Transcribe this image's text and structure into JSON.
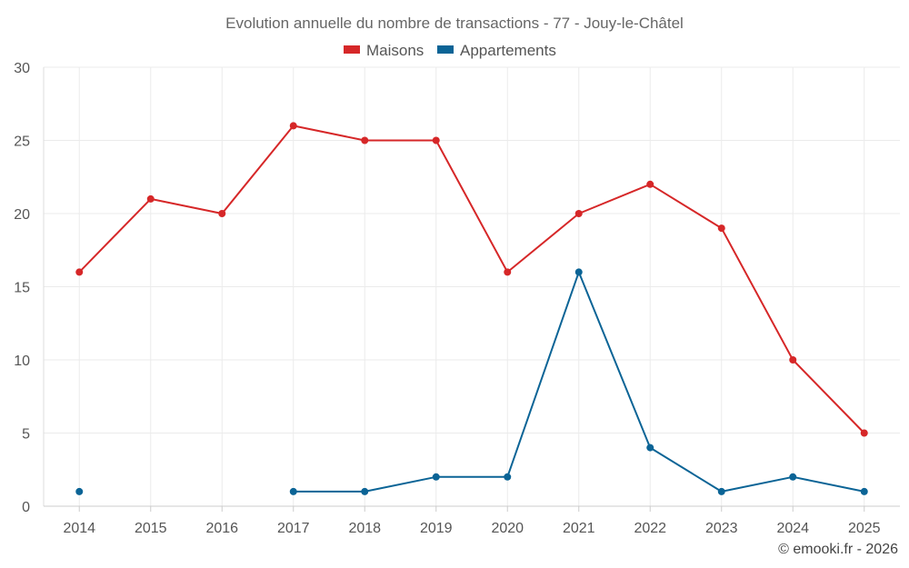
{
  "chart_data": {
    "type": "line",
    "title": "Evolution annuelle du nombre de transactions - 77 - Jouy-le-Châtel",
    "categories": [
      "2014",
      "2015",
      "2016",
      "2017",
      "2018",
      "2019",
      "2020",
      "2021",
      "2022",
      "2023",
      "2024",
      "2025"
    ],
    "series": [
      {
        "name": "Maisons",
        "color": "#d62728",
        "values": [
          16,
          21,
          20,
          26,
          25,
          25,
          16,
          20,
          22,
          19,
          10,
          5
        ]
      },
      {
        "name": "Appartements",
        "color": "#0b6496",
        "values": [
          1,
          null,
          null,
          1,
          1,
          2,
          2,
          16,
          4,
          1,
          2,
          1
        ]
      }
    ],
    "ylim": [
      0,
      30
    ],
    "yticks": [
      0,
      5,
      10,
      15,
      20,
      25,
      30
    ],
    "legend_position": "top-center",
    "grid": true
  },
  "credit": "© emooki.fr - 2026"
}
